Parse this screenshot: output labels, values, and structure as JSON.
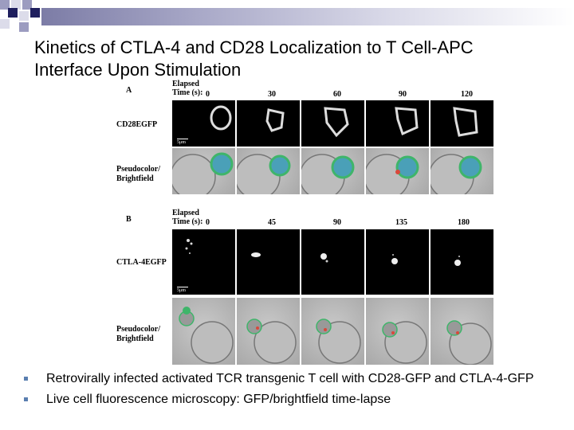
{
  "slide": {
    "title_line1": "Kinetics of CTLA-4 and CD28 Localization to T Cell-APC",
    "title_line2": "Interface Upon Stimulation",
    "bullets": [
      "Retrovirally infected activated TCR transgenic T cell with CD28-GFP and CTLA-4-GFP",
      "Live cell fluorescence microscopy: GFP/brightfield time-lapse"
    ]
  },
  "figure": {
    "panel_a": {
      "letter": "A",
      "elapsed_line1": "Elapsed",
      "elapsed_line2": "Time (s):",
      "times": [
        "0",
        "30",
        "60",
        "90",
        "120"
      ],
      "row1_label": "CD28EGFP",
      "row2_label_line1": "Pseudocolor/",
      "row2_label_line2": "Brightfield",
      "scale_label": "5μm"
    },
    "panel_b": {
      "letter": "B",
      "elapsed_line1": "Elapsed",
      "elapsed_line2": "Time (s):",
      "times": [
        "0",
        "45",
        "90",
        "135",
        "180"
      ],
      "row1_label": "CTLA-4EGFP",
      "row2_label_line1": "Pseudocolor/",
      "row2_label_line2": "Brightfield",
      "scale_label": "5μm"
    }
  },
  "colors": {
    "bullet": "#5a7fb0",
    "header_gradient_start": "#7c7ca6",
    "gfp_green": "#3fb56a"
  }
}
